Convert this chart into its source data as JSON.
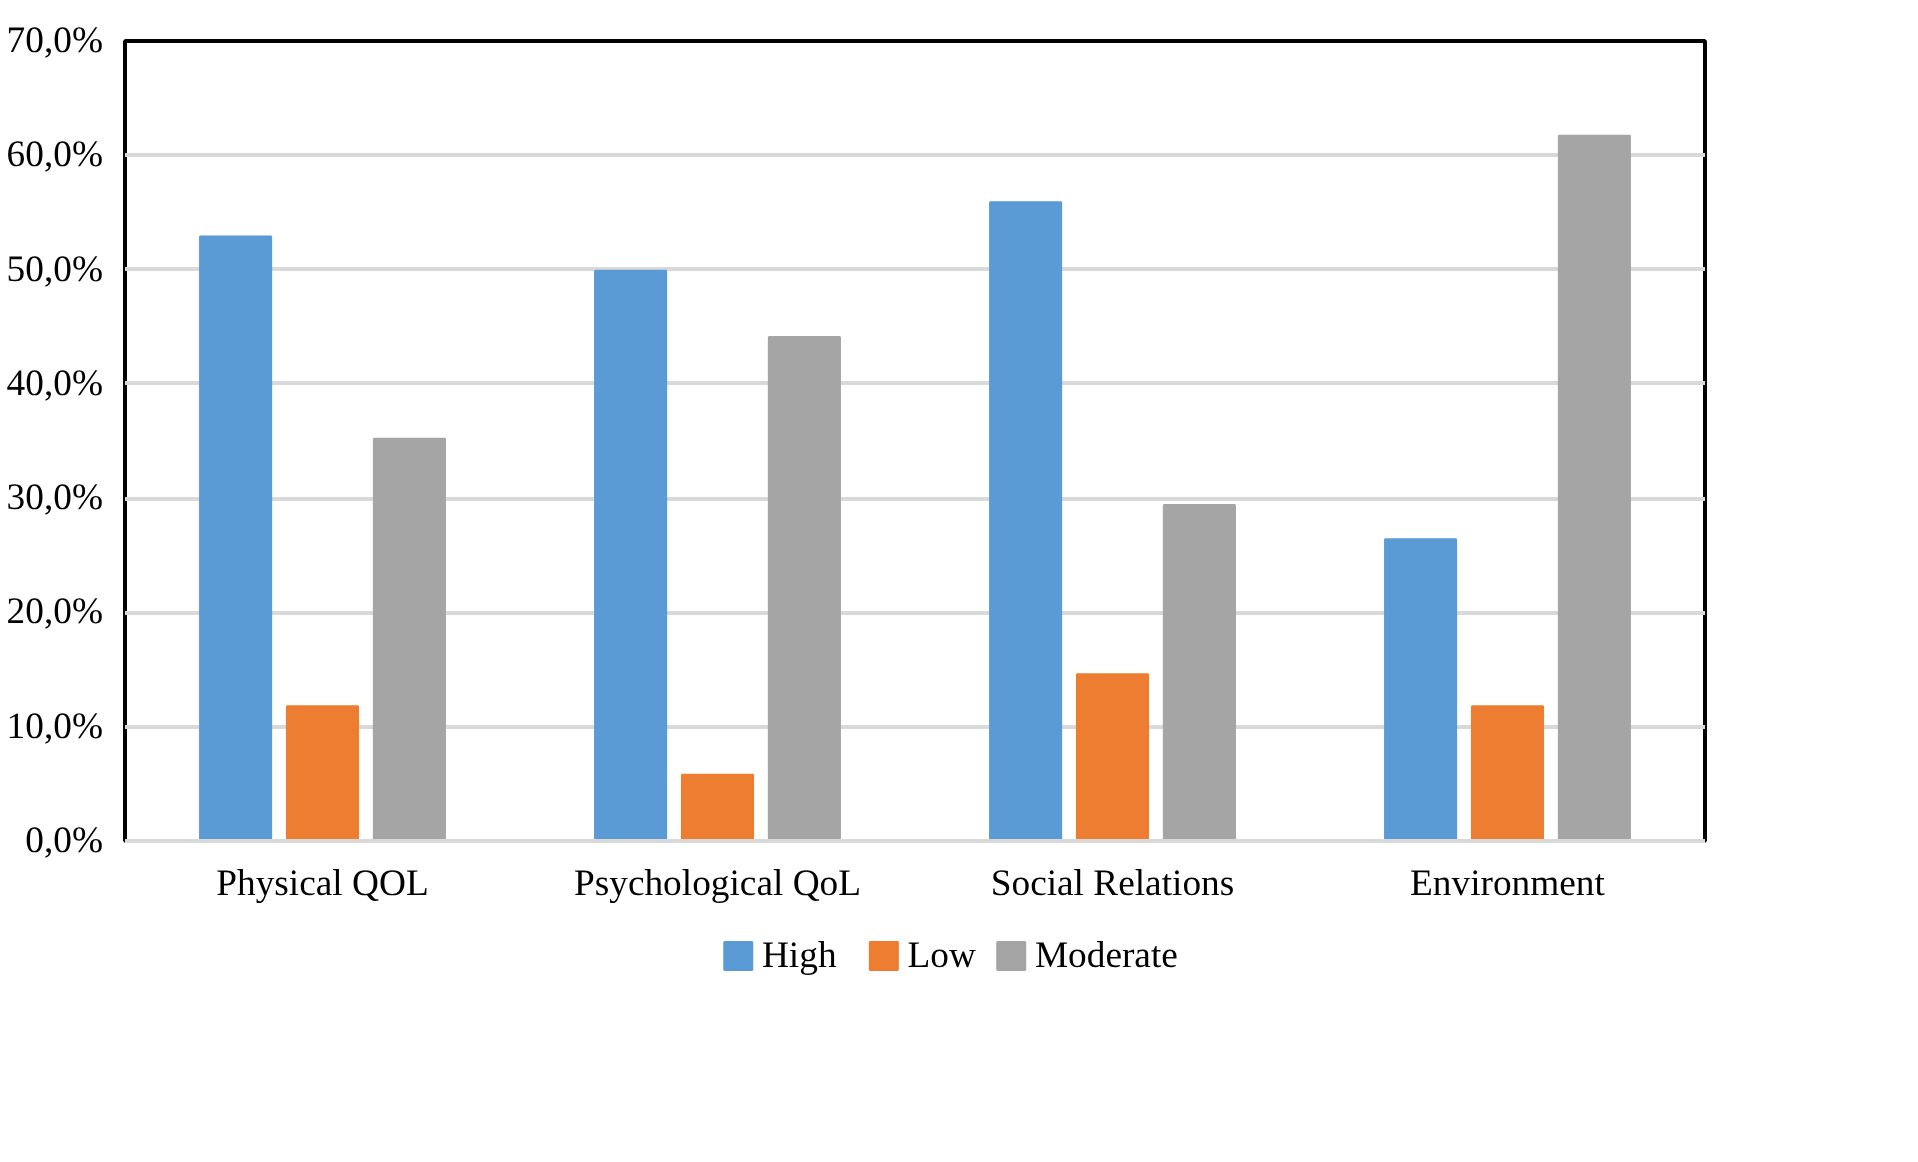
{
  "chart_data": {
    "type": "bar",
    "categories": [
      "Physical QOL",
      "Psychological QoL",
      "Social Relations",
      "Environment"
    ],
    "series": [
      {
        "name": "High",
        "color": "#5b9bd5",
        "values": [
          52.9,
          49.9,
          55.9,
          26.4
        ]
      },
      {
        "name": "Low",
        "color": "#ed7d31",
        "values": [
          11.8,
          5.8,
          14.6,
          11.8
        ]
      },
      {
        "name": "Moderate",
        "color": "#a5a5a5",
        "values": [
          35.2,
          44.1,
          29.4,
          61.7
        ]
      }
    ],
    "ylim": [
      0,
      70
    ],
    "yticks": [
      {
        "value": 0,
        "label": "0,0%"
      },
      {
        "value": 10,
        "label": "10,0%"
      },
      {
        "value": 20,
        "label": "20,0%"
      },
      {
        "value": 30,
        "label": "30,0%"
      },
      {
        "value": 40,
        "label": "40,0%"
      },
      {
        "value": 50,
        "label": "50,0%"
      },
      {
        "value": 60,
        "label": "60,0%"
      },
      {
        "value": 70,
        "label": "70,0%"
      }
    ],
    "grid": "y",
    "legend": "bottom"
  }
}
